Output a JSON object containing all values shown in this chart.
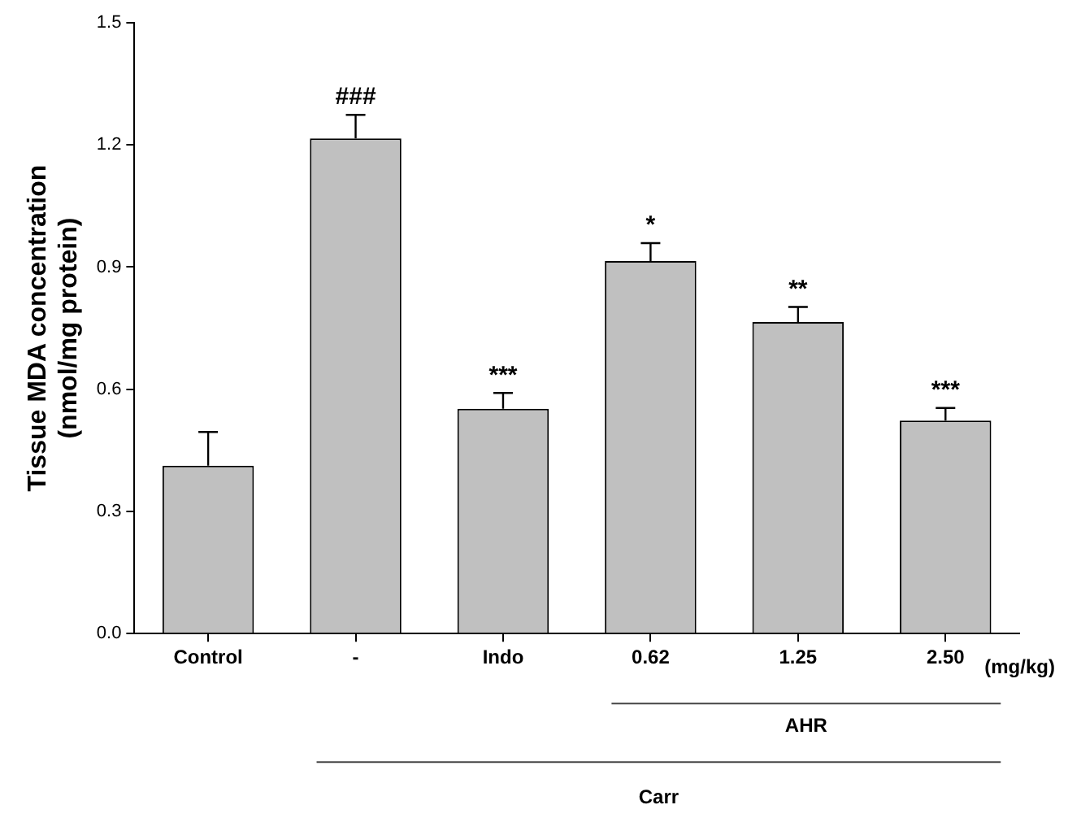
{
  "chart_data": {
    "type": "bar",
    "ylabel": "Tissue MDA concentration\n(nmol/mg protein)",
    "categories": [
      "Control",
      "-",
      "Indo",
      "0.62",
      "1.25",
      "2.50"
    ],
    "values": [
      0.412,
      1.216,
      0.552,
      0.915,
      0.765,
      0.523
    ],
    "errors": [
      [
        0.412,
        0.495
      ],
      [
        1.216,
        1.274
      ],
      [
        0.552,
        0.591
      ],
      [
        0.915,
        0.959
      ],
      [
        0.765,
        0.802
      ],
      [
        0.523,
        0.554
      ]
    ],
    "color": "#c0c0c0",
    "ylim": [
      0,
      1.5
    ],
    "yticks": [
      {
        "value": 0,
        "label": "0.0"
      },
      0.3,
      0.6,
      0.9,
      1.2,
      1.5
    ],
    "grid": false,
    "legend": false,
    "annotations": [
      {
        "text": "###",
        "x": "-",
        "y": 1.274
      },
      {
        "text": "***",
        "x": "Indo",
        "y": 0.591
      },
      {
        "text": "*",
        "x": "0.62",
        "y": 0.959
      },
      {
        "text": "**",
        "x": "1.25",
        "y": 0.802
      },
      {
        "text": "***",
        "x": "2.50",
        "y": 0.554
      },
      "(mg/kg)",
      "AHR",
      "Carr"
    ]
  }
}
